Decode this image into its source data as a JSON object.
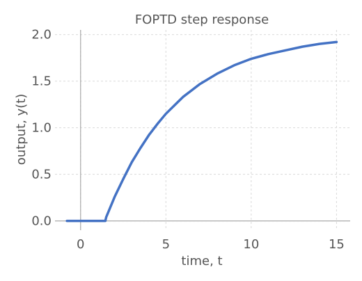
{
  "chart_data": {
    "type": "line",
    "title": "FOPTD step response",
    "xlabel": "time, t",
    "ylabel": "output, y(t)",
    "xlim": [
      -1.5,
      15.8
    ],
    "ylim": [
      -0.1,
      2.05
    ],
    "xticks": [
      0,
      5,
      10,
      15
    ],
    "xtick_labels": [
      "0",
      "5",
      "10",
      "15"
    ],
    "yticks": [
      0.0,
      0.5,
      1.0,
      1.5,
      2.0
    ],
    "ytick_labels": [
      "0.0",
      "0.5",
      "1.0",
      "1.5",
      "2.0"
    ],
    "grid": true,
    "series": [
      {
        "name": "y(t)",
        "color": "#4472c4",
        "x": [
          -0.8,
          0,
          0.5,
          1.0,
          1.45,
          1.5,
          2.0,
          2.5,
          3.0,
          3.5,
          4.0,
          4.5,
          5.0,
          5.5,
          6.0,
          7.0,
          8.0,
          9.0,
          10.0,
          11.0,
          12.0,
          13.0,
          14.0,
          15.0
        ],
        "y": [
          0.0,
          0.0,
          0.0,
          0.0,
          0.0,
          0.04,
          0.26,
          0.45,
          0.63,
          0.78,
          0.92,
          1.04,
          1.15,
          1.24,
          1.33,
          1.47,
          1.58,
          1.67,
          1.74,
          1.79,
          1.83,
          1.87,
          1.9,
          1.92
        ]
      }
    ]
  }
}
